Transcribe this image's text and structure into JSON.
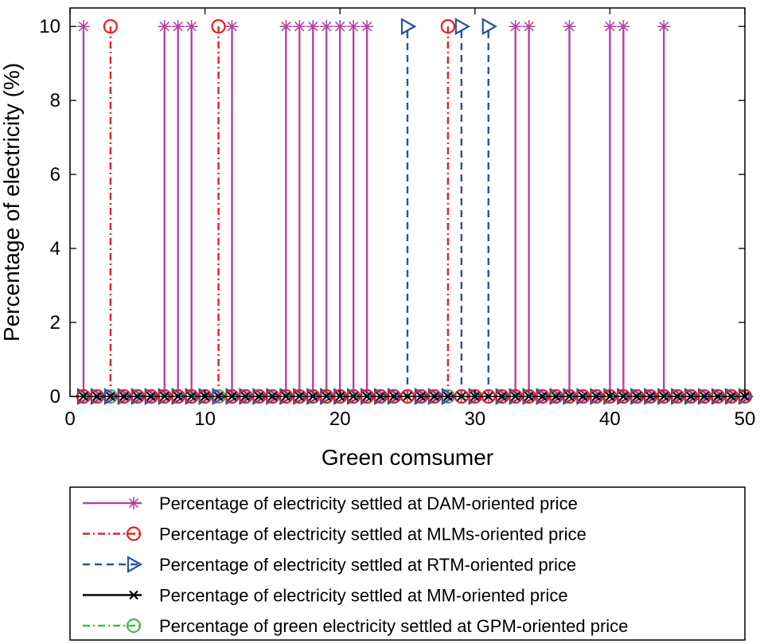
{
  "chart_data": {
    "type": "stem",
    "xlabel": "Green comsumer",
    "ylabel": "Percentage of electricity (%)",
    "xlim": [
      0,
      50
    ],
    "ylim": [
      0,
      10.5
    ],
    "xticks": [
      0,
      10,
      20,
      30,
      40,
      50
    ],
    "yticks": [
      0,
      2,
      4,
      6,
      8,
      10
    ],
    "x": [
      1,
      2,
      3,
      4,
      5,
      6,
      7,
      8,
      9,
      10,
      11,
      12,
      13,
      14,
      15,
      16,
      17,
      18,
      19,
      20,
      21,
      22,
      23,
      24,
      25,
      26,
      27,
      28,
      29,
      30,
      31,
      32,
      33,
      34,
      35,
      36,
      37,
      38,
      39,
      40,
      41,
      42,
      43,
      44,
      45,
      46,
      47,
      48,
      49,
      50
    ],
    "series": [
      {
        "name": "Percentage of electricity settled at DAM-oriented price",
        "color": "#B0479E",
        "line": "solid",
        "marker": "asterisk",
        "values": [
          10,
          0,
          0,
          0,
          0,
          0,
          10,
          10,
          10,
          0,
          0,
          10,
          0,
          0,
          0,
          10,
          10,
          10,
          10,
          10,
          10,
          10,
          0,
          0,
          0,
          0,
          0,
          0,
          0,
          0,
          0,
          0,
          10,
          10,
          0,
          0,
          10,
          0,
          0,
          10,
          10,
          0,
          0,
          10,
          0,
          0,
          0,
          0,
          0,
          0
        ]
      },
      {
        "name": "Percentage of electricity settled at MLMs-oriented price",
        "color": "#E8211F",
        "line": "dashdot",
        "marker": "circle",
        "values": [
          0,
          0,
          10,
          0,
          0,
          0,
          0,
          0,
          0,
          0,
          10,
          0,
          0,
          0,
          0,
          0,
          0,
          0,
          0,
          0,
          0,
          0,
          0,
          0,
          0,
          0,
          0,
          10,
          0,
          0,
          0,
          0,
          0,
          0,
          0,
          0,
          0,
          0,
          0,
          0,
          0,
          0,
          0,
          0,
          0,
          0,
          0,
          0,
          0,
          0
        ]
      },
      {
        "name": "Percentage of electricity settled at RTM-oriented price",
        "color": "#2E4FA2",
        "line": "dashed",
        "marker": "triangle-right",
        "values": [
          0,
          0,
          0,
          0,
          0,
          0,
          0,
          0,
          0,
          0,
          0,
          0,
          0,
          0,
          0,
          0,
          0,
          0,
          0,
          0,
          0,
          0,
          0,
          0,
          10,
          0,
          0,
          0,
          10,
          0,
          10,
          0,
          0,
          0,
          0,
          0,
          0,
          0,
          0,
          0,
          0,
          0,
          0,
          0,
          0,
          0,
          0,
          0,
          0,
          0
        ]
      },
      {
        "name": "Percentage of electricity settled at MM-oriented price",
        "color": "#000000",
        "line": "solid",
        "marker": "x",
        "values": [
          0,
          0,
          0,
          0,
          0,
          0,
          0,
          0,
          0,
          0,
          0,
          0,
          0,
          0,
          0,
          0,
          0,
          0,
          0,
          0,
          0,
          0,
          0,
          0,
          0,
          0,
          0,
          0,
          0,
          0,
          0,
          0,
          0,
          0,
          0,
          0,
          0,
          0,
          0,
          0,
          0,
          0,
          0,
          0,
          0,
          0,
          0,
          0,
          0,
          0
        ]
      },
      {
        "name": "Percentage of green electricity settled at GPM-oriented price",
        "color": "#4DB848",
        "line": "dashdot",
        "marker": "circle",
        "values": [
          0,
          0,
          0,
          0,
          0,
          0,
          0,
          0,
          0,
          0,
          0,
          0,
          0,
          0,
          0,
          0,
          0,
          0,
          0,
          0,
          0,
          0,
          0,
          0,
          0,
          0,
          0,
          0,
          0,
          0,
          0,
          0,
          0,
          0,
          0,
          0,
          0,
          0,
          0,
          0,
          0,
          0,
          0,
          0,
          0,
          0,
          0,
          0,
          0,
          0
        ]
      }
    ]
  }
}
